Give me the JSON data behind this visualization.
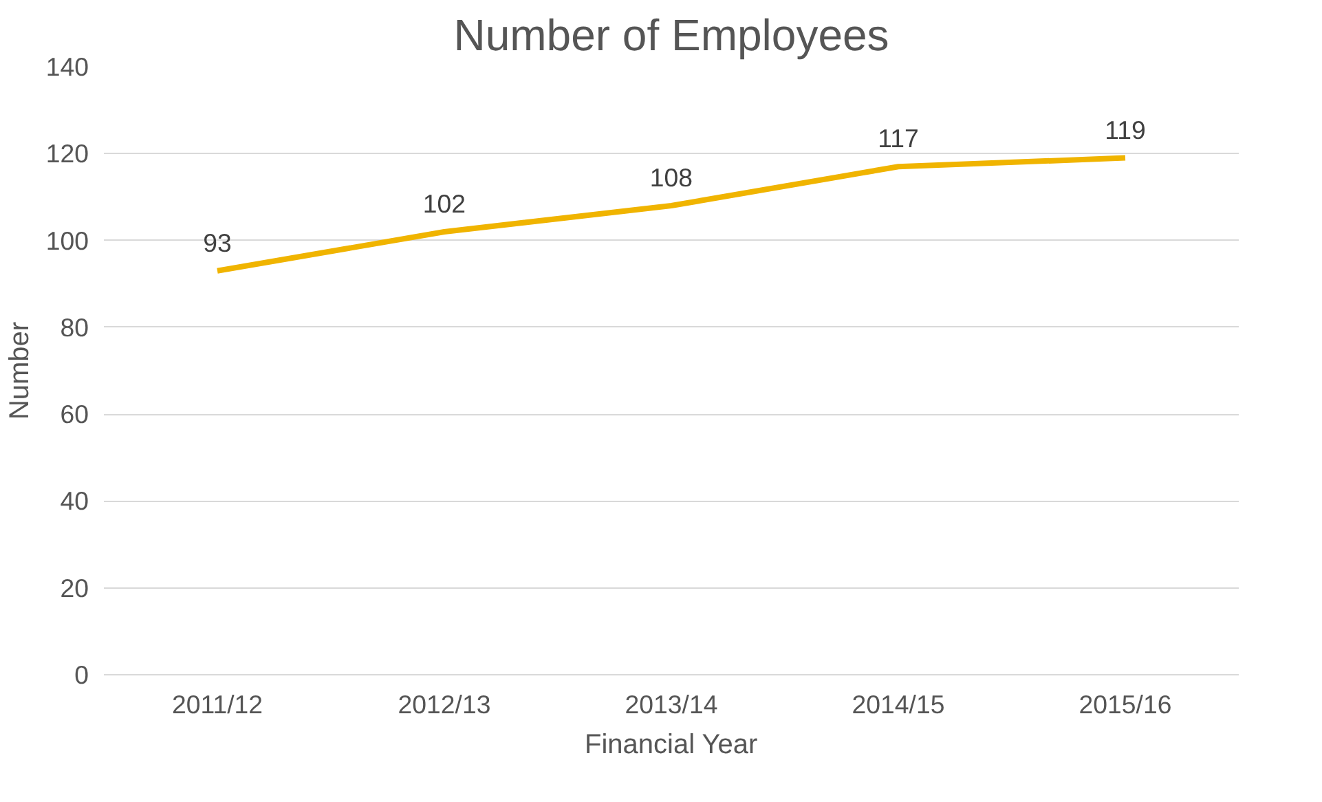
{
  "chart_data": {
    "type": "line",
    "title": "Number of Employees",
    "xlabel": "Financial Year",
    "ylabel": "Number",
    "categories": [
      "2011/12",
      "2012/13",
      "2013/14",
      "2014/15",
      "2015/16"
    ],
    "series": [
      {
        "color": "#f0b400",
        "values": [
          93,
          102,
          108,
          117,
          119
        ]
      }
    ],
    "ylim": [
      0,
      140
    ],
    "yticks": [
      0,
      20,
      40,
      60,
      80,
      100,
      120,
      140
    ],
    "grid": "y",
    "data_labels": true,
    "marker": "none",
    "line_style": "solid"
  }
}
